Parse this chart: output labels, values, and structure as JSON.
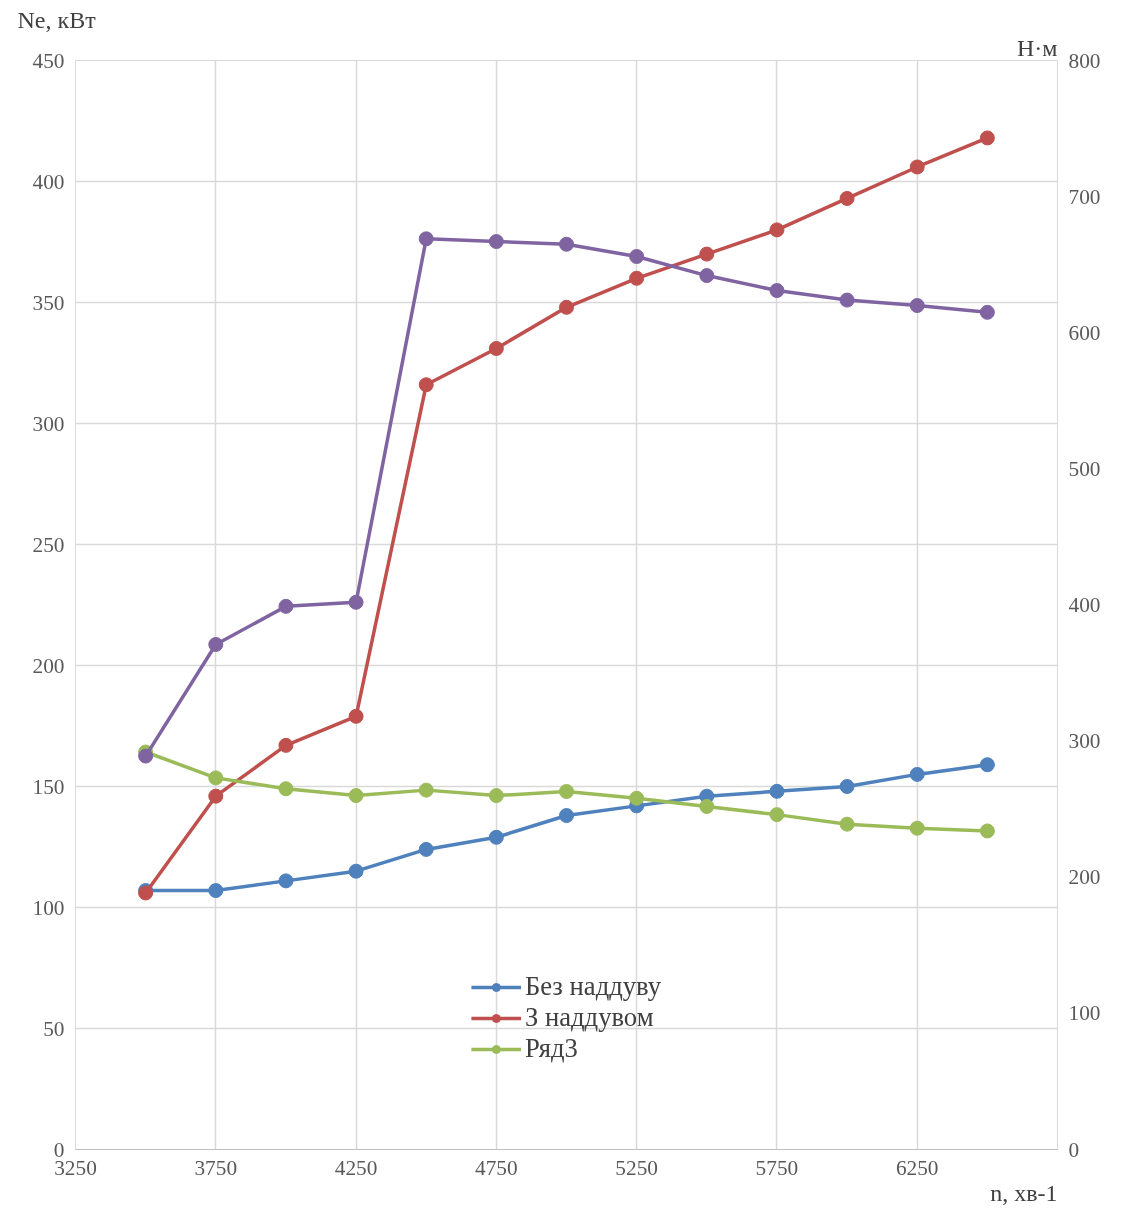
{
  "chart_data": {
    "type": "line",
    "xlabel": "n, хв-1",
    "ylabel": "Ne, кВт",
    "y2label": "Н·м",
    "x": [
      3500,
      3750,
      4000,
      4250,
      4500,
      4750,
      5000,
      5250,
      5500,
      5750,
      6000,
      6250,
      6500
    ],
    "series": [
      {
        "name": "Без наддуву",
        "color": "#4f81bd",
        "values": [
          107,
          107,
          111,
          115,
          124,
          129,
          138,
          142,
          146,
          148,
          150,
          155,
          159
        ]
      },
      {
        "name": "З наддувом",
        "color": "#c0504d",
        "values": [
          106,
          146,
          167,
          179,
          316,
          331,
          348,
          360,
          370,
          380,
          393,
          406,
          418
        ]
      },
      {
        "name": "Ряд3",
        "color": "#9bbb59",
        "axis": "y2",
        "values": [
          292,
          273,
          265,
          260,
          264,
          260,
          263,
          258,
          252,
          246,
          239,
          236,
          234
        ]
      },
      {
        "color": "#8064a2",
        "axis": "y2",
        "values": [
          289,
          371,
          399,
          402,
          669,
          667,
          665,
          656,
          642,
          631,
          624,
          620,
          615
        ]
      }
    ],
    "xlim": [
      3250,
      6750
    ],
    "xticks": [
      3250,
      3750,
      4250,
      4750,
      5250,
      5750,
      6250,
      {
        "value": 6750,
        "label": null
      }
    ],
    "ylim": [
      0,
      450
    ],
    "yticks": [
      0,
      50,
      100,
      150,
      200,
      250,
      300,
      350,
      400,
      450
    ],
    "y2lim": [
      0,
      800
    ],
    "y2ticks": [
      0,
      100,
      200,
      300,
      400,
      500,
      600,
      700,
      800
    ],
    "grid": true,
    "legend": "bottom",
    "marker": "circle",
    "line_style": "solid"
  }
}
